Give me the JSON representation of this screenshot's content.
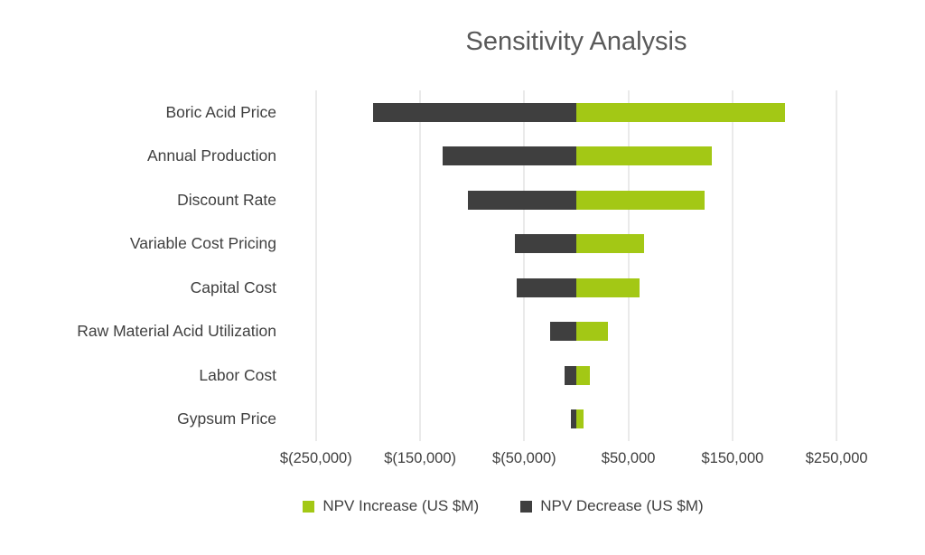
{
  "chart_data": {
    "type": "bar",
    "orientation": "horizontal",
    "title": "Sensitivity Analysis",
    "categories": [
      "Boric Acid Price",
      "Annual Production",
      "Discount Rate",
      "Variable Cost Pricing",
      "Capital Cost",
      "Raw Material Acid Utilization",
      "Labor Cost",
      "Gypsum Price"
    ],
    "series": [
      {
        "name": "NPV Increase (US $M)",
        "color": "#a3c815",
        "values": [
          200000,
          130000,
          123000,
          65000,
          61000,
          30000,
          13000,
          7000
        ]
      },
      {
        "name": "NPV Decrease (US $M)",
        "color": "#3f3f3f",
        "values": [
          -195000,
          -128000,
          -104000,
          -59000,
          -57000,
          -25000,
          -11000,
          -5000
        ]
      }
    ],
    "xlim": [
      -262000,
      262000
    ],
    "x_ticks": [
      {
        "value": -250000,
        "label": "$(250,000)"
      },
      {
        "value": -150000,
        "label": "$(150,000)"
      },
      {
        "value": -50000,
        "label": "$(50,000)"
      },
      {
        "value": 50000,
        "label": "$50,000"
      },
      {
        "value": 150000,
        "label": "$150,000"
      },
      {
        "value": 250000,
        "label": "$250,000"
      }
    ],
    "grid": true,
    "legend_position": "bottom",
    "colors": {
      "title_text": "#595959",
      "axis_text": "#404040",
      "gridline": "#d6d6d6",
      "background": "#ffffff"
    }
  }
}
